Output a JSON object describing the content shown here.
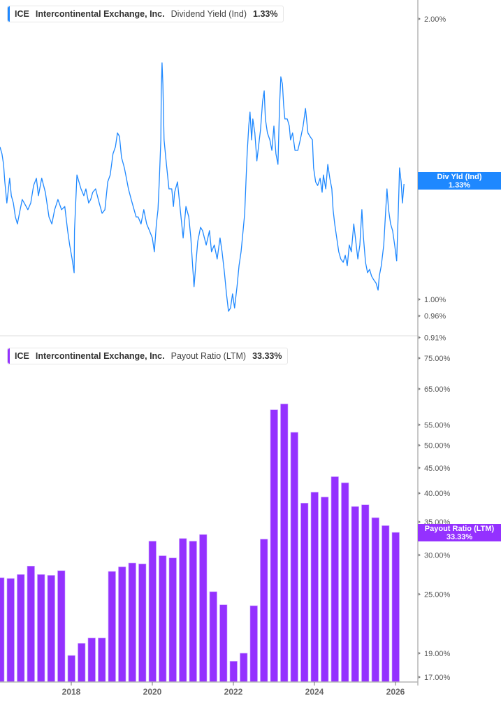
{
  "colors": {
    "yield": "#1e88ff",
    "payout": "#9431ff",
    "axis": "#b5b5b5",
    "text": "#555555"
  },
  "top_legend": {
    "ticker": "ICE",
    "company": "Intercontinental Exchange, Inc.",
    "metric": "Dividend Yield (Ind)",
    "value": "1.33%"
  },
  "top_tag": {
    "label": "Div Yld (Ind)",
    "value": "1.33%"
  },
  "bottom_legend": {
    "ticker": "ICE",
    "company": "Intercontinental Exchange, Inc.",
    "metric": "Payout Ratio (LTM)",
    "value": "33.33%"
  },
  "bottom_tag": {
    "label": "Payout Ratio (LTM)",
    "value": "33.33%"
  },
  "chart_data": [
    {
      "type": "line",
      "series_label": "Dividend Yield (Ind)",
      "y_scale": "log",
      "yticks": [
        2.0,
        1.0,
        0.96,
        0.91
      ],
      "ytick_labels": [
        "2.00%",
        "1.00%",
        "0.96%",
        "0.91%"
      ],
      "xlim": [
        2016.24,
        2026.21
      ],
      "last_value": 1.33,
      "points": [
        [
          2016.24,
          1.458
        ],
        [
          2016.29,
          1.433
        ],
        [
          2016.33,
          1.396
        ],
        [
          2016.36,
          1.337
        ],
        [
          2016.41,
          1.269
        ],
        [
          2016.45,
          1.314
        ],
        [
          2016.48,
          1.349
        ],
        [
          2016.52,
          1.292
        ],
        [
          2016.57,
          1.269
        ],
        [
          2016.62,
          1.226
        ],
        [
          2016.67,
          1.205
        ],
        [
          2016.72,
          1.237
        ],
        [
          2016.79,
          1.28
        ],
        [
          2016.84,
          1.269
        ],
        [
          2016.93,
          1.248
        ],
        [
          2017.0,
          1.269
        ],
        [
          2017.07,
          1.325
        ],
        [
          2017.14,
          1.349
        ],
        [
          2017.19,
          1.292
        ],
        [
          2017.27,
          1.349
        ],
        [
          2017.36,
          1.303
        ],
        [
          2017.45,
          1.226
        ],
        [
          2017.52,
          1.205
        ],
        [
          2017.59,
          1.248
        ],
        [
          2017.67,
          1.28
        ],
        [
          2017.76,
          1.248
        ],
        [
          2017.84,
          1.258
        ],
        [
          2017.91,
          1.185
        ],
        [
          2017.96,
          1.144
        ],
        [
          2018.02,
          1.105
        ],
        [
          2018.07,
          1.068
        ],
        [
          2018.08,
          1.185
        ],
        [
          2018.14,
          1.36
        ],
        [
          2018.19,
          1.337
        ],
        [
          2018.24,
          1.314
        ],
        [
          2018.31,
          1.292
        ],
        [
          2018.36,
          1.314
        ],
        [
          2018.43,
          1.269
        ],
        [
          2018.48,
          1.28
        ],
        [
          2018.53,
          1.303
        ],
        [
          2018.6,
          1.314
        ],
        [
          2018.69,
          1.269
        ],
        [
          2018.76,
          1.237
        ],
        [
          2018.83,
          1.248
        ],
        [
          2018.9,
          1.337
        ],
        [
          2018.96,
          1.36
        ],
        [
          2019.03,
          1.433
        ],
        [
          2019.09,
          1.458
        ],
        [
          2019.14,
          1.509
        ],
        [
          2019.19,
          1.496
        ],
        [
          2019.24,
          1.42
        ],
        [
          2019.31,
          1.384
        ],
        [
          2019.36,
          1.349
        ],
        [
          2019.41,
          1.314
        ],
        [
          2019.48,
          1.28
        ],
        [
          2019.55,
          1.248
        ],
        [
          2019.6,
          1.226
        ],
        [
          2019.65,
          1.226
        ],
        [
          2019.72,
          1.205
        ],
        [
          2019.79,
          1.248
        ],
        [
          2019.86,
          1.205
        ],
        [
          2019.93,
          1.185
        ],
        [
          2020.0,
          1.164
        ],
        [
          2020.05,
          1.125
        ],
        [
          2020.1,
          1.205
        ],
        [
          2020.14,
          1.248
        ],
        [
          2020.17,
          1.337
        ],
        [
          2020.21,
          1.483
        ],
        [
          2020.22,
          1.674
        ],
        [
          2020.24,
          1.794
        ],
        [
          2020.26,
          1.703
        ],
        [
          2020.29,
          1.483
        ],
        [
          2020.34,
          1.408
        ],
        [
          2020.41,
          1.314
        ],
        [
          2020.48,
          1.314
        ],
        [
          2020.52,
          1.258
        ],
        [
          2020.55,
          1.303
        ],
        [
          2020.62,
          1.337
        ],
        [
          2020.69,
          1.248
        ],
        [
          2020.76,
          1.164
        ],
        [
          2020.83,
          1.258
        ],
        [
          2020.9,
          1.226
        ],
        [
          2020.95,
          1.164
        ],
        [
          2021.0,
          1.077
        ],
        [
          2021.03,
          1.032
        ],
        [
          2021.07,
          1.087
        ],
        [
          2021.12,
          1.154
        ],
        [
          2021.19,
          1.195
        ],
        [
          2021.24,
          1.185
        ],
        [
          2021.33,
          1.144
        ],
        [
          2021.41,
          1.185
        ],
        [
          2021.46,
          1.125
        ],
        [
          2021.53,
          1.144
        ],
        [
          2021.6,
          1.105
        ],
        [
          2021.67,
          1.164
        ],
        [
          2021.72,
          1.125
        ],
        [
          2021.78,
          1.068
        ],
        [
          2021.83,
          1.014
        ],
        [
          2021.88,
          0.971
        ],
        [
          2021.93,
          0.979
        ],
        [
          2021.98,
          1.014
        ],
        [
          2022.03,
          0.979
        ],
        [
          2022.09,
          1.032
        ],
        [
          2022.14,
          1.087
        ],
        [
          2022.19,
          1.125
        ],
        [
          2022.24,
          1.185
        ],
        [
          2022.28,
          1.237
        ],
        [
          2022.31,
          1.337
        ],
        [
          2022.34,
          1.433
        ],
        [
          2022.38,
          1.535
        ],
        [
          2022.41,
          1.589
        ],
        [
          2022.45,
          1.483
        ],
        [
          2022.48,
          1.562
        ],
        [
          2022.53,
          1.509
        ],
        [
          2022.58,
          1.408
        ],
        [
          2022.64,
          1.483
        ],
        [
          2022.67,
          1.522
        ],
        [
          2022.72,
          1.631
        ],
        [
          2022.76,
          1.674
        ],
        [
          2022.79,
          1.562
        ],
        [
          2022.84,
          1.509
        ],
        [
          2022.9,
          1.483
        ],
        [
          2022.95,
          1.445
        ],
        [
          2023.0,
          1.535
        ],
        [
          2023.05,
          1.433
        ],
        [
          2023.1,
          1.396
        ],
        [
          2023.14,
          1.617
        ],
        [
          2023.17,
          1.733
        ],
        [
          2023.21,
          1.703
        ],
        [
          2023.24,
          1.617
        ],
        [
          2023.27,
          1.562
        ],
        [
          2023.33,
          1.562
        ],
        [
          2023.38,
          1.535
        ],
        [
          2023.41,
          1.483
        ],
        [
          2023.46,
          1.509
        ],
        [
          2023.52,
          1.445
        ],
        [
          2023.59,
          1.445
        ],
        [
          2023.65,
          1.483
        ],
        [
          2023.72,
          1.535
        ],
        [
          2023.78,
          1.603
        ],
        [
          2023.84,
          1.509
        ],
        [
          2023.89,
          1.496
        ],
        [
          2023.95,
          1.483
        ],
        [
          2023.98,
          1.384
        ],
        [
          2024.03,
          1.337
        ],
        [
          2024.08,
          1.325
        ],
        [
          2024.14,
          1.349
        ],
        [
          2024.19,
          1.303
        ],
        [
          2024.22,
          1.36
        ],
        [
          2024.28,
          1.314
        ],
        [
          2024.33,
          1.396
        ],
        [
          2024.38,
          1.349
        ],
        [
          2024.43,
          1.314
        ],
        [
          2024.46,
          1.248
        ],
        [
          2024.5,
          1.205
        ],
        [
          2024.55,
          1.164
        ],
        [
          2024.6,
          1.125
        ],
        [
          2024.65,
          1.105
        ],
        [
          2024.71,
          1.096
        ],
        [
          2024.76,
          1.115
        ],
        [
          2024.81,
          1.087
        ],
        [
          2024.86,
          1.144
        ],
        [
          2024.91,
          1.125
        ],
        [
          2024.97,
          1.205
        ],
        [
          2025.02,
          1.154
        ],
        [
          2025.07,
          1.105
        ],
        [
          2025.12,
          1.144
        ],
        [
          2025.17,
          1.248
        ],
        [
          2025.21,
          1.164
        ],
        [
          2025.26,
          1.096
        ],
        [
          2025.31,
          1.068
        ],
        [
          2025.36,
          1.077
        ],
        [
          2025.41,
          1.059
        ],
        [
          2025.46,
          1.05
        ],
        [
          2025.52,
          1.041
        ],
        [
          2025.57,
          1.023
        ],
        [
          2025.6,
          1.059
        ],
        [
          2025.65,
          1.087
        ],
        [
          2025.71,
          1.144
        ],
        [
          2025.74,
          1.205
        ],
        [
          2025.79,
          1.314
        ],
        [
          2025.83,
          1.248
        ],
        [
          2025.88,
          1.205
        ],
        [
          2025.93,
          1.185
        ],
        [
          2025.98,
          1.144
        ],
        [
          2026.03,
          1.1
        ],
        [
          2026.07,
          1.248
        ],
        [
          2026.1,
          1.384
        ],
        [
          2026.14,
          1.337
        ],
        [
          2026.17,
          1.269
        ],
        [
          2026.21,
          1.33
        ]
      ]
    },
    {
      "type": "bar",
      "series_label": "Payout Ratio (LTM)",
      "y_scale": "log",
      "yticks": [
        75,
        65,
        55,
        50,
        45,
        40,
        35,
        30,
        25,
        19,
        17
      ],
      "ytick_labels": [
        "75.00%",
        "65.00%",
        "55.00%",
        "50.00%",
        "45.00%",
        "40.00%",
        "35.00%",
        "30.00%",
        "25.00%",
        "19.00%",
        "17.00%"
      ],
      "xticks": [
        "2018",
        "2020",
        "2022",
        "2024",
        "2026"
      ],
      "categories": [
        "2016 Q1",
        "2016 Q2",
        "2016 Q3",
        "2016 Q4",
        "2017 Q1",
        "2017 Q2",
        "2017 Q3",
        "2017 Q4",
        "2018 Q1",
        "2018 Q2",
        "2018 Q3",
        "2018 Q4",
        "2019 Q1",
        "2019 Q2",
        "2019 Q3",
        "2019 Q4",
        "2020 Q1",
        "2020 Q2",
        "2020 Q3",
        "2020 Q4",
        "2021 Q1",
        "2021 Q2",
        "2021 Q3",
        "2021 Q4",
        "2022 Q1",
        "2022 Q2",
        "2022 Q3",
        "2022 Q4",
        "2023 Q1",
        "2023 Q2",
        "2023 Q3",
        "2023 Q4",
        "2024 Q1",
        "2024 Q2",
        "2024 Q3",
        "2024 Q4",
        "2025 Q1",
        "2025 Q2",
        "2025 Q3",
        "2025 Q4"
      ],
      "values": [
        27.0,
        26.9,
        27.4,
        28.5,
        27.4,
        27.3,
        27.9,
        18.8,
        19.9,
        20.4,
        20.4,
        27.8,
        28.4,
        28.9,
        28.8,
        32.0,
        29.9,
        29.6,
        32.4,
        32.0,
        33.0,
        25.3,
        23.8,
        18.3,
        19.0,
        23.7,
        32.3,
        59.0,
        60.6,
        53.1,
        38.2,
        40.2,
        39.3,
        43.2,
        42.0,
        37.6,
        37.9,
        35.7,
        34.4,
        33.33
      ]
    }
  ]
}
